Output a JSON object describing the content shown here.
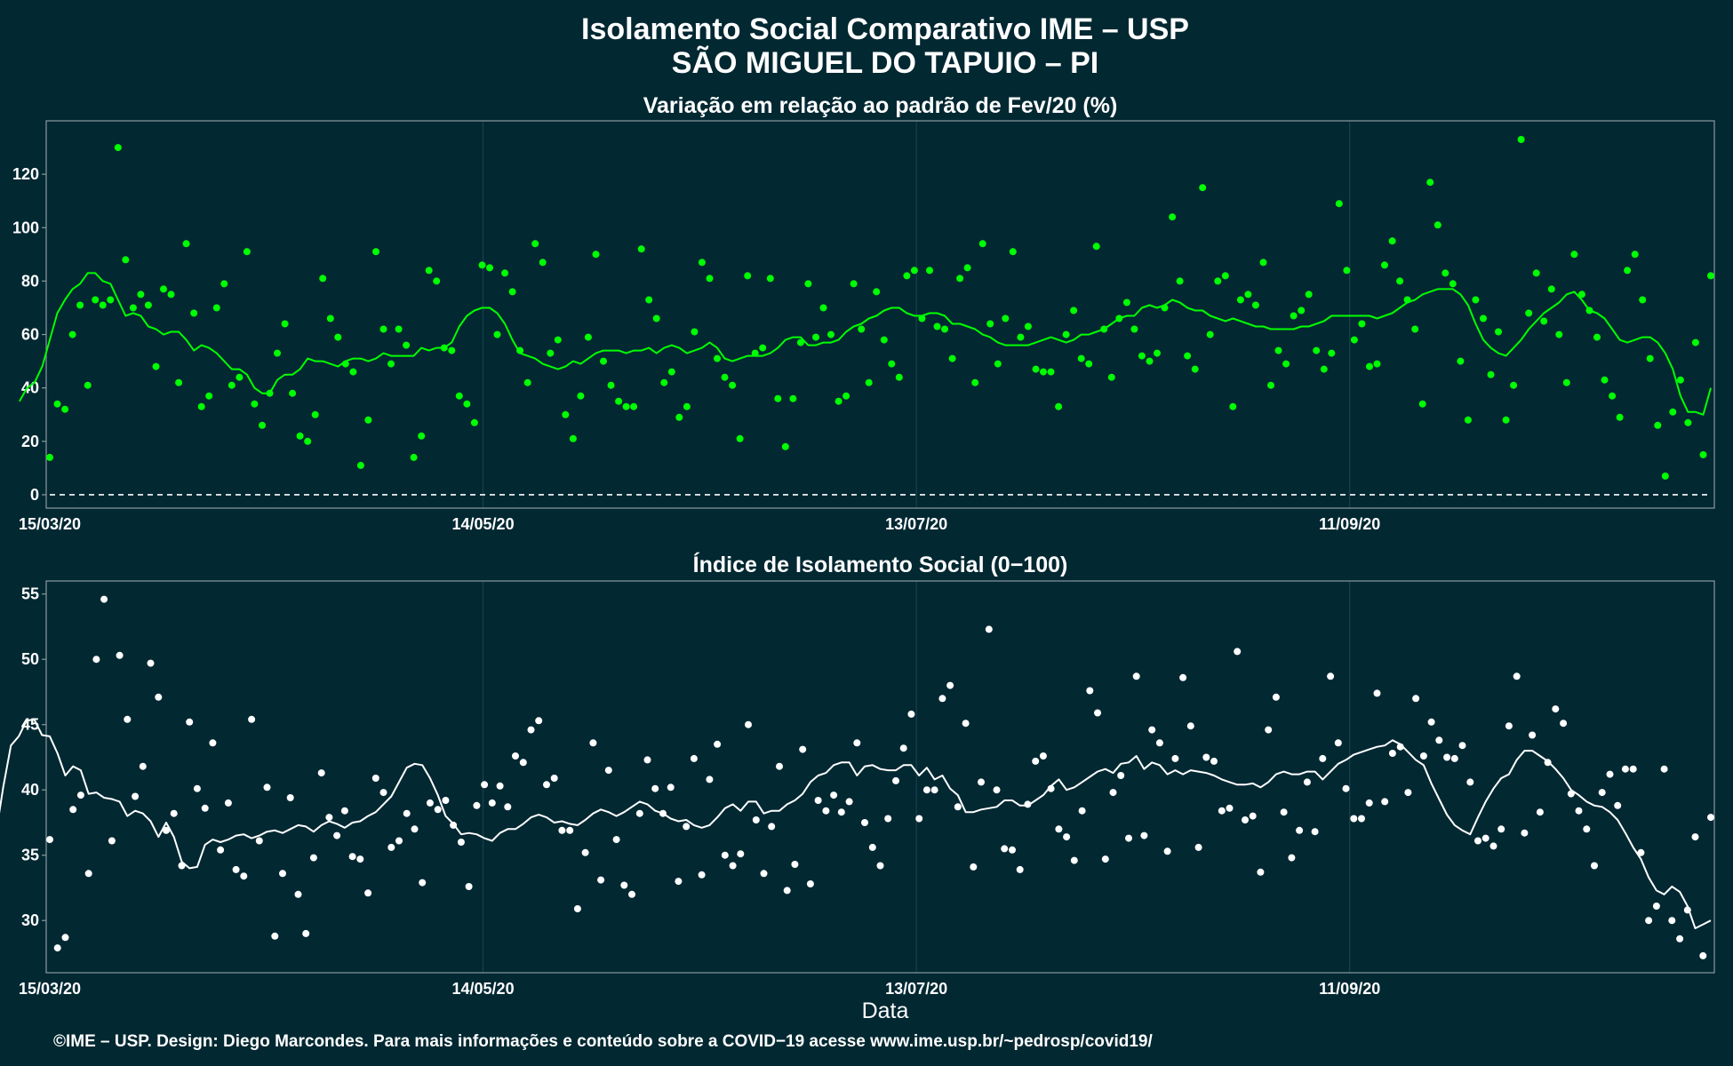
{
  "header": {
    "title_line1": "Isolamento Social Comparativo IME – USP",
    "title_line2": "SÃO MIGUEL DO TAPUIO – PI"
  },
  "xlabel": "Data",
  "caption": "©IME – USP. Design: Diego Marcondes. Para mais informações e conteúdo sobre a COVID−19 acesse www.ime.usp.br/~pedrosp/covid19/",
  "colors": {
    "background": "#022832",
    "top_series": "#00ff00",
    "bottom_series": "#ffffff"
  },
  "chart_data": [
    {
      "type": "scatter",
      "title": "Variação em relação ao padrão de Fev/20 (%)",
      "x_start": "2020-03-15",
      "x_end": "2020-10-31",
      "x_ticks": [
        "15/03/20",
        "14/05/20",
        "13/07/20",
        "11/09/20"
      ],
      "y_ticks": [
        0,
        20,
        40,
        60,
        80,
        100,
        120
      ],
      "ylim": [
        -5,
        140
      ],
      "reference_line": 0,
      "grid": "vertical",
      "series": [
        {
          "kind": "points",
          "values": [
            14,
            34,
            32,
            60,
            71,
            41,
            73,
            71,
            73,
            130,
            88,
            70,
            75,
            71,
            48,
            77,
            75,
            42,
            94,
            68,
            33,
            37,
            70,
            79,
            41,
            44,
            91,
            34,
            26,
            38,
            53,
            64,
            38,
            22,
            20,
            30,
            81,
            66,
            59,
            49,
            46,
            11,
            28,
            91,
            62,
            49,
            62,
            56,
            14,
            22,
            84,
            80,
            55,
            54,
            37,
            34,
            27,
            86,
            85,
            60,
            83,
            76,
            54,
            42,
            94,
            87,
            53,
            58,
            30,
            21,
            37,
            59,
            90,
            50,
            41,
            35,
            33,
            33,
            92,
            73,
            66,
            42,
            46,
            29,
            33,
            61,
            87,
            81,
            51,
            44,
            41,
            21,
            82,
            53,
            55,
            81,
            36,
            18,
            36,
            57,
            79,
            59,
            70,
            60,
            35,
            37,
            79,
            62,
            42,
            76,
            58,
            49,
            44,
            82,
            84,
            66,
            84,
            63,
            62,
            51,
            81,
            85,
            42,
            94,
            64,
            49,
            66,
            91,
            59,
            63,
            47,
            46,
            46,
            33,
            60,
            69,
            51,
            49,
            93,
            62,
            44,
            66,
            72,
            62,
            52,
            50,
            53,
            70,
            104,
            80,
            52,
            47,
            115,
            60,
            80,
            82,
            33,
            73,
            75,
            71,
            87,
            41,
            54,
            49,
            67,
            69,
            75,
            54,
            47,
            53,
            109,
            84,
            58,
            64,
            48,
            49,
            86,
            95,
            80,
            73,
            62,
            34,
            117,
            101,
            83,
            79,
            50,
            28,
            73,
            66,
            45,
            61,
            28,
            41,
            133,
            68,
            83,
            65,
            77,
            60,
            42,
            90,
            75,
            69,
            59,
            43,
            37,
            29,
            84,
            90,
            73,
            51,
            26,
            7,
            31,
            43,
            27,
            57,
            15,
            82
          ]
        },
        {
          "kind": "moving_average",
          "values": [
            35,
            40,
            42,
            48,
            58,
            68,
            73,
            77,
            79,
            83,
            83,
            80,
            79,
            73,
            67,
            68,
            67,
            63,
            62,
            60,
            61,
            61,
            58,
            54,
            56,
            55,
            53,
            50,
            47,
            47,
            45,
            40,
            38,
            38,
            43,
            45,
            45,
            47,
            51,
            50,
            50,
            49,
            48,
            50,
            51,
            51,
            50,
            51,
            53,
            52,
            52,
            52,
            52,
            55,
            54,
            55,
            55,
            57,
            63,
            67,
            69,
            70,
            70,
            68,
            64,
            58,
            53,
            52,
            51,
            49,
            48,
            47,
            48,
            50,
            49,
            51,
            53,
            54,
            54,
            54,
            53,
            54,
            54,
            55,
            53,
            55,
            56,
            55,
            53,
            54,
            55,
            57,
            55,
            51,
            50,
            51,
            52,
            52,
            52,
            53,
            55,
            58,
            59,
            59,
            56,
            56,
            57,
            57,
            58,
            61,
            63,
            64,
            66,
            67,
            69,
            70,
            70,
            68,
            67,
            67,
            68,
            68,
            67,
            64,
            64,
            63,
            62,
            60,
            59,
            57,
            56,
            56,
            56,
            56,
            57,
            58,
            59,
            58,
            57,
            58,
            60,
            60,
            61,
            62,
            64,
            66,
            67,
            67,
            70,
            71,
            70,
            71,
            73,
            72,
            70,
            69,
            69,
            67,
            66,
            65,
            66,
            65,
            64,
            63,
            63,
            62,
            62,
            62,
            62,
            63,
            63,
            64,
            65,
            67,
            67,
            67,
            67,
            67,
            67,
            66,
            67,
            68,
            70,
            72,
            73,
            75,
            76,
            77,
            77,
            77,
            75,
            71,
            64,
            58,
            55,
            53,
            52,
            55,
            58,
            62,
            65,
            68,
            70,
            72,
            75,
            76,
            73,
            69,
            68,
            66,
            62,
            58,
            57,
            58,
            59,
            59,
            57,
            53,
            47,
            37,
            31,
            31,
            30,
            40
          ]
        }
      ]
    },
    {
      "type": "scatter",
      "title": "Índice de Isolamento Social (0−100)",
      "x_start": "2020-03-15",
      "x_end": "2020-10-31",
      "x_ticks": [
        "15/03/20",
        "14/05/20",
        "13/07/20",
        "11/09/20"
      ],
      "y_ticks": [
        30,
        35,
        40,
        45,
        50,
        55
      ],
      "ylim": [
        26,
        56
      ],
      "grid": "vertical",
      "series": [
        {
          "kind": "points",
          "values": [
            36.2,
            27.9,
            28.7,
            38.5,
            39.6,
            33.6,
            50.0,
            54.6,
            36.1,
            50.3,
            45.4,
            39.5,
            41.8,
            49.7,
            47.1,
            36.9,
            38.2,
            34.2,
            45.2,
            40.1,
            38.6,
            43.6,
            35.4,
            39.0,
            33.9,
            33.4,
            45.4,
            36.1,
            40.2,
            28.8,
            33.6,
            39.4,
            32.0,
            29.0,
            34.8,
            41.3,
            37.9,
            36.5,
            38.4,
            34.9,
            34.7,
            32.1,
            40.9,
            39.8,
            35.6,
            36.1,
            38.2,
            37.0,
            32.9,
            39.0,
            38.5,
            39.2,
            37.3,
            36.0,
            32.6,
            38.8,
            40.4,
            39.0,
            40.3,
            38.7,
            42.6,
            42.1,
            44.6,
            45.3,
            40.4,
            40.9,
            36.9,
            36.9,
            30.9,
            35.2,
            43.6,
            33.1,
            41.5,
            36.2,
            32.7,
            32.0,
            38.2,
            42.3,
            40.1,
            38.2,
            40.2,
            33.0,
            37.2,
            42.4,
            33.5,
            40.8,
            43.5,
            35.0,
            34.2,
            35.1,
            45.0,
            37.7,
            33.6,
            37.2,
            41.8,
            32.3,
            34.3,
            43.1,
            32.8,
            39.2,
            38.4,
            39.6,
            38.3,
            39.1,
            43.6,
            37.5,
            35.6,
            34.2,
            37.8,
            40.7,
            43.2,
            45.8,
            37.8,
            40.0,
            40.0,
            47.0,
            48.0,
            38.7,
            45.1,
            34.1,
            40.6,
            52.3,
            40.0,
            35.5,
            35.4,
            33.9,
            38.9,
            42.2,
            42.6,
            40.1,
            37.0,
            36.4,
            34.6,
            38.4,
            47.6,
            45.9,
            34.7,
            39.8,
            41.1,
            36.3,
            48.7,
            36.5,
            44.6,
            43.6,
            35.3,
            42.4,
            48.6,
            44.9,
            35.6,
            42.5,
            42.2,
            38.4,
            38.6,
            50.6,
            37.7,
            38.0,
            33.7,
            44.6,
            47.1,
            38.3,
            34.8,
            36.9,
            40.6,
            36.8,
            42.4,
            48.7,
            43.6,
            40.1,
            37.8,
            37.8,
            39.0,
            47.4,
            39.1,
            42.8,
            43.3,
            39.8,
            47.0,
            42.6,
            45.2,
            43.8,
            42.5,
            42.4,
            43.4,
            40.6,
            36.1,
            36.3,
            35.7,
            37.0,
            44.9,
            48.7,
            36.7,
            44.2,
            38.3,
            42.1,
            46.2,
            45.1,
            39.7,
            38.4,
            37.0,
            34.2,
            39.8,
            41.2,
            38.8,
            41.6,
            41.6,
            35.2,
            30.0,
            31.1,
            41.6,
            30.0,
            28.6,
            30.8,
            36.4,
            27.3,
            37.9
          ]
        },
        {
          "kind": "moving_average",
          "values": [
            36.4,
            40.2,
            43.4,
            44.1,
            45.3,
            45.4,
            44.2,
            44.1,
            42.8,
            41.1,
            41.8,
            41.5,
            39.7,
            39.8,
            39.4,
            39.3,
            39.1,
            38.0,
            38.4,
            38.2,
            37.6,
            36.4,
            37.5,
            36.4,
            34.5,
            34.0,
            34.1,
            35.8,
            36.2,
            36.0,
            36.2,
            36.5,
            36.6,
            36.3,
            36.5,
            36.8,
            36.9,
            36.7,
            37.0,
            37.3,
            37.2,
            36.8,
            37.3,
            37.6,
            37.4,
            37.1,
            37.5,
            37.6,
            38.0,
            38.3,
            38.9,
            39.5,
            40.6,
            41.7,
            42.0,
            41.9,
            40.9,
            39.6,
            38.0,
            37.4,
            36.6,
            36.7,
            36.6,
            36.3,
            36.1,
            36.7,
            37.0,
            37.0,
            37.4,
            37.9,
            38.1,
            37.9,
            37.5,
            37.6,
            37.4,
            37.3,
            37.7,
            38.2,
            38.5,
            38.3,
            38.0,
            38.3,
            38.7,
            39.1,
            38.9,
            38.4,
            38.2,
            37.8,
            37.6,
            37.7,
            37.3,
            37.1,
            37.3,
            37.9,
            38.6,
            38.9,
            38.4,
            39.1,
            39.1,
            38.2,
            38.4,
            38.4,
            38.9,
            39.2,
            39.7,
            40.6,
            41.1,
            41.3,
            41.9,
            42.1,
            42.1,
            41.1,
            41.8,
            41.9,
            41.6,
            41.5,
            41.5,
            41.9,
            41.9,
            41.1,
            41.7,
            40.8,
            41.1,
            40.1,
            39.6,
            38.3,
            38.3,
            38.5,
            38.6,
            38.7,
            39.2,
            39.2,
            38.8,
            38.8,
            39.2,
            39.6,
            40.3,
            40.8,
            40.0,
            40.2,
            40.6,
            41.0,
            41.4,
            41.6,
            41.3,
            42.0,
            42.1,
            42.6,
            41.6,
            42.1,
            41.9,
            41.2,
            41.5,
            41.2,
            41.5,
            41.4,
            41.3,
            41.1,
            40.8,
            40.6,
            40.4,
            40.4,
            40.5,
            40.2,
            40.6,
            41.2,
            41.4,
            41.2,
            41.2,
            41.4,
            41.4,
            40.8,
            41.4,
            42.0,
            42.3,
            42.7,
            42.9,
            43.1,
            43.3,
            43.4,
            43.8,
            43.5,
            42.9,
            42.3,
            41.9,
            40.5,
            39.3,
            38.1,
            37.3,
            36.9,
            36.6,
            37.9,
            39.1,
            40.1,
            40.9,
            41.2,
            42.3,
            43.0,
            43.0,
            42.6,
            42.2,
            41.6,
            40.9,
            40.0,
            39.6,
            39.1,
            38.8,
            38.7,
            38.3,
            37.7,
            36.7,
            35.6,
            34.7,
            33.3,
            32.3,
            32.0,
            32.6,
            32.2,
            31.1,
            29.4,
            29.7,
            30.0
          ]
        }
      ]
    }
  ]
}
